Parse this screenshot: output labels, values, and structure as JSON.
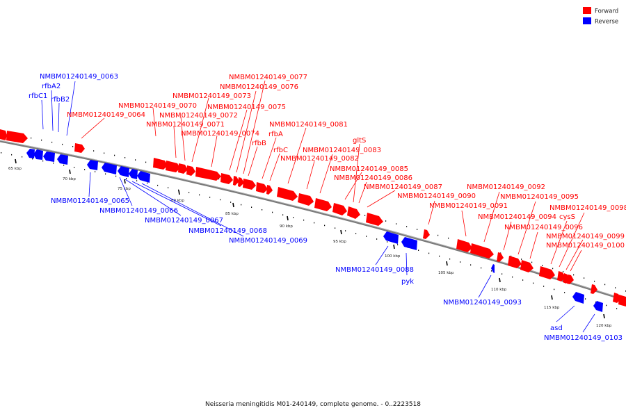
{
  "caption": "Neisseria meningitidis M01-240149, complete genome. - 0..2223518",
  "legend": [
    {
      "label": "Forward",
      "color": "#ff0000"
    },
    {
      "label": "Reverse",
      "color": "#0000ff"
    }
  ],
  "colors": {
    "forward": "#ff0000",
    "reverse": "#0000ff",
    "backbone": "#808080"
  },
  "scale_labels": [
    "65 kbp",
    "70 kbp",
    "75 kbp",
    "80 kbp",
    "85 kbp",
    "90 kbp",
    "95 kbp",
    "100 kbp",
    "105 kbp",
    "110 kbp",
    "115 kbp",
    "120 kbp"
  ],
  "gene_labels": {
    "forward": [
      "NMBM01240149_0064",
      "NMBM01240149_0070",
      "NMBM01240149_0071",
      "NMBM01240149_0072",
      "NMBM01240149_0073",
      "NMBM01240149_0074",
      "NMBM01240149_0075",
      "NMBM01240149_0076",
      "NMBM01240149_0077",
      "rfbB",
      "rfbA",
      "rfbC",
      "NMBM01240149_0081",
      "NMBM01240149_0082",
      "NMBM01240149_0083",
      "gltS",
      "NMBM01240149_0085",
      "NMBM01240149_0086",
      "NMBM01240149_0087",
      "NMBM01240149_0090",
      "NMBM01240149_0091",
      "NMBM01240149_0092",
      "NMBM01240149_0094",
      "NMBM01240149_0095",
      "NMBM01240149_0096",
      "cysS",
      "NMBM01240149_0098",
      "NMBM01240149_0099",
      "NMBM01240149_0100"
    ],
    "reverse": [
      "NMBM01240149_0063",
      "rfbA2",
      "rfbC1",
      "rfbB2",
      "NMBM01240149_0065",
      "NMBM01240149_0066",
      "NMBM01240149_0067",
      "NMBM01240149_0068",
      "NMBM01240149_0069",
      "NMBM01240149_0088",
      "pyk",
      "NMBM01240149_0093",
      "asd",
      "NMBM01240149_0103"
    ]
  }
}
